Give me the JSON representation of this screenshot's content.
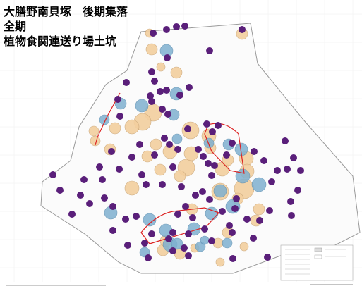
{
  "header": {
    "title_lines": [
      "大膳野南貝塚　後期集落",
      "全期",
      "植物食関連送り場土坑"
    ]
  }
}
